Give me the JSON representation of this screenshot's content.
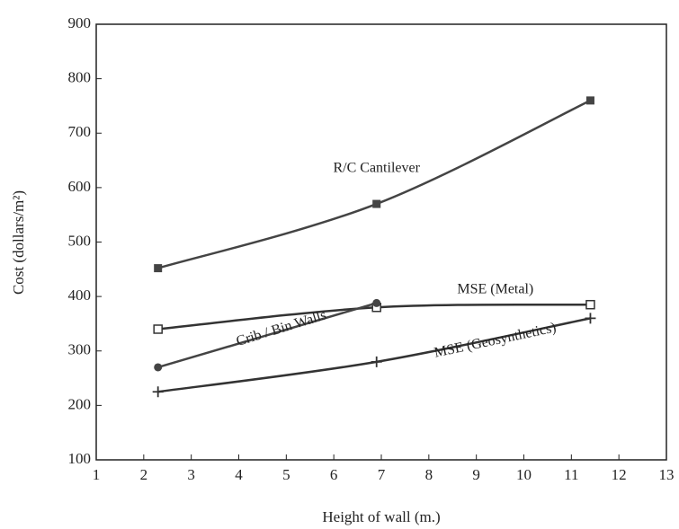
{
  "chart_data": {
    "type": "line",
    "x_label": "Height of wall (m.)",
    "y_label": "Cost (dollars/m²)",
    "xlim": [
      1,
      13
    ],
    "xticks": [
      1,
      2,
      3,
      4,
      5,
      6,
      7,
      8,
      9,
      10,
      11,
      12,
      13
    ],
    "ylim": [
      100,
      900
    ],
    "yticks": [
      100,
      200,
      300,
      400,
      500,
      600,
      700,
      800,
      900
    ],
    "series": [
      {
        "name": "R/C Cantilever",
        "color": "#444444",
        "marker": "square",
        "x": [
          2.3,
          6.9,
          11.4
        ],
        "values": [
          452,
          570,
          760
        ]
      },
      {
        "name": "MSE (Metal)",
        "color": "#333333",
        "marker": "open-square",
        "x": [
          2.3,
          6.9,
          11.4
        ],
        "values": [
          340,
          380,
          385
        ]
      },
      {
        "name": "Crib / Bin Walls",
        "color": "#444444",
        "marker": "circle",
        "x": [
          2.3,
          6.9
        ],
        "values": [
          270,
          388
        ]
      },
      {
        "name": "MSE (Geosynthetics)",
        "color": "#333333",
        "marker": "plus",
        "x": [
          2.3,
          6.9,
          11.4
        ],
        "values": [
          225,
          280,
          360
        ]
      }
    ]
  }
}
